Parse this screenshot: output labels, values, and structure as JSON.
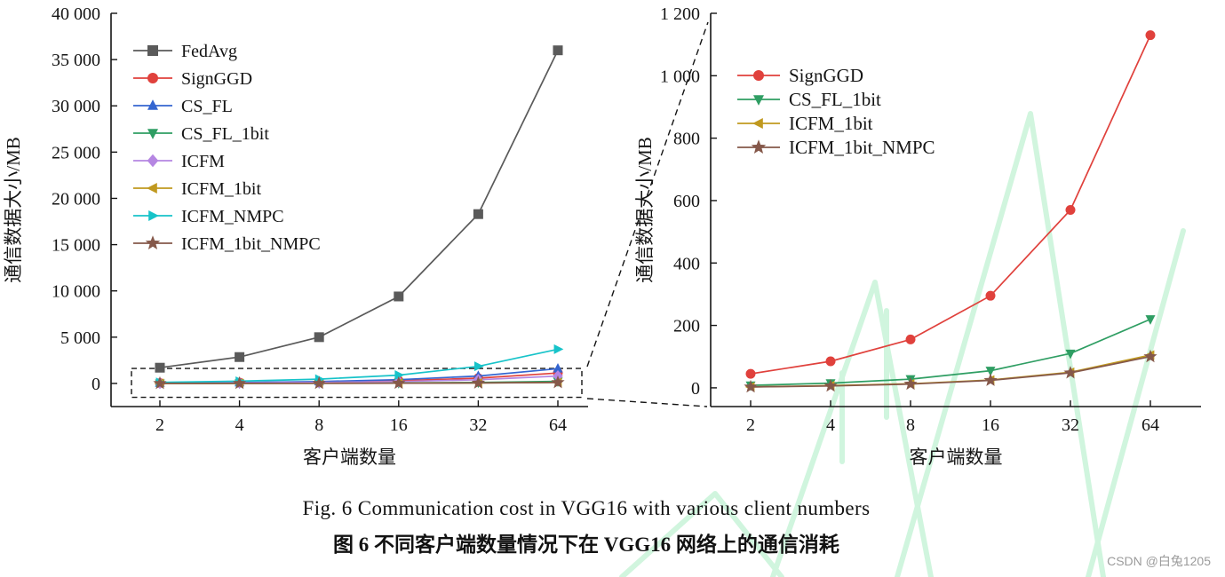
{
  "page": {
    "watermark_credit": "CSDN @白兔1205"
  },
  "captions": {
    "english": "Fig. 6 Communication cost in VGG16 with various client numbers",
    "chinese": "图 6 不同客户端数量情况下在 VGG16 网络上的通信消耗"
  },
  "chart_data": [
    {
      "id": "overview",
      "type": "line",
      "title": "",
      "xlabel": "客户端数量",
      "ylabel": "通信数据大小/MB",
      "categories": [
        "2",
        "4",
        "8",
        "16",
        "32",
        "64"
      ],
      "ylim": [
        -2500,
        40000
      ],
      "yticks": [
        0,
        5000,
        10000,
        15000,
        20000,
        25000,
        30000,
        35000,
        40000
      ],
      "ytick_labels": [
        "0",
        "5 000",
        "10 000",
        "15 000",
        "20 000",
        "25 000",
        "30 000",
        "35 000",
        "40 000"
      ],
      "grid": false,
      "legend_position": "top-left",
      "zoom_rect": {
        "y_top": 1620,
        "y_bottom": -1500
      },
      "series": [
        {
          "name": "FedAvg",
          "color": "#5a5a5a",
          "marker": "square",
          "values": [
            1700,
            2850,
            5000,
            9400,
            18300,
            36000
          ]
        },
        {
          "name": "SignGGD",
          "color": "#e0413c",
          "marker": "circle",
          "values": [
            45,
            85,
            155,
            295,
            570,
            1130
          ]
        },
        {
          "name": "CS_FL",
          "color": "#3465d0",
          "marker": "triangle-up",
          "values": [
            55,
            110,
            210,
            410,
            800,
            1600
          ]
        },
        {
          "name": "CS_FL_1bit",
          "color": "#2f9e63",
          "marker": "triangle-down",
          "values": [
            8,
            15,
            28,
            55,
            110,
            220
          ]
        },
        {
          "name": "ICFM",
          "color": "#b586e2",
          "marker": "diamond",
          "values": [
            28,
            55,
            105,
            205,
            400,
            800
          ]
        },
        {
          "name": "ICFM_1bit",
          "color": "#c0991f",
          "marker": "triangle-left",
          "values": [
            3,
            7,
            13,
            25,
            50,
            105
          ]
        },
        {
          "name": "ICFM_NMPC",
          "color": "#17c3c9",
          "marker": "triangle-right",
          "values": [
            120,
            240,
            460,
            900,
            1850,
            3700
          ]
        },
        {
          "name": "ICFM_1bit_NMPC",
          "color": "#85584a",
          "marker": "star",
          "values": [
            3,
            6,
            12,
            24,
            48,
            100
          ]
        }
      ]
    },
    {
      "id": "zoomed",
      "type": "line",
      "title": "",
      "xlabel": "客户端数量",
      "ylabel": "通信数据大小/MB",
      "categories": [
        "2",
        "4",
        "8",
        "16",
        "32",
        "64"
      ],
      "ylim": [
        -60,
        1200
      ],
      "yticks": [
        0,
        200,
        400,
        600,
        800,
        1000,
        1200
      ],
      "ytick_labels": [
        "0",
        "200",
        "400",
        "600",
        "800",
        "1 000",
        "1 200"
      ],
      "grid": false,
      "legend_position": "top-left",
      "series": [
        {
          "name": "SignGGD",
          "color": "#e0413c",
          "marker": "circle",
          "values": [
            45,
            85,
            155,
            295,
            570,
            1130
          ]
        },
        {
          "name": "CS_FL_1bit",
          "color": "#2f9e63",
          "marker": "triangle-down",
          "values": [
            8,
            15,
            28,
            55,
            110,
            220
          ]
        },
        {
          "name": "ICFM_1bit",
          "color": "#c0991f",
          "marker": "triangle-left",
          "values": [
            3,
            7,
            13,
            25,
            50,
            105
          ]
        },
        {
          "name": "ICFM_1bit_NMPC",
          "color": "#85584a",
          "marker": "star",
          "values": [
            3,
            6,
            12,
            24,
            48,
            100
          ]
        }
      ]
    }
  ]
}
